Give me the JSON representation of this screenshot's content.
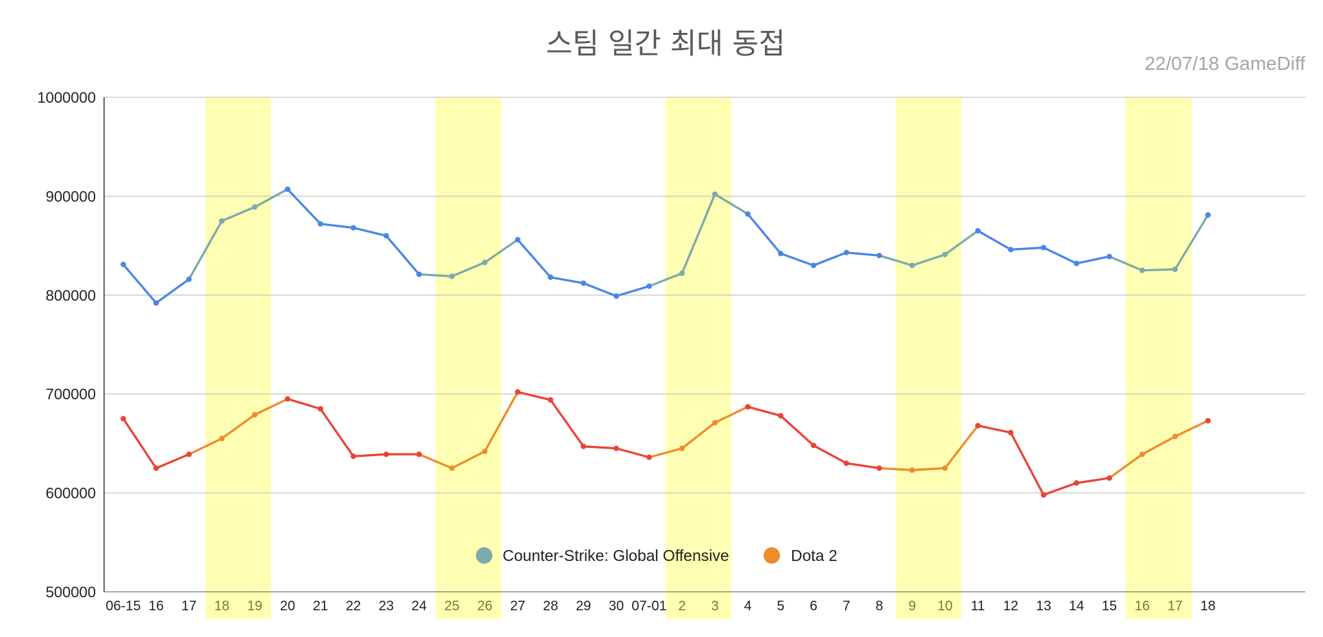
{
  "chart_data": {
    "type": "line",
    "title": "스팀 일간 최대 동접",
    "subtitle": "22/07/18  GameDiff",
    "xlabel": "",
    "ylabel": "",
    "ylim": [
      500000,
      1000000
    ],
    "yticks": [
      500000,
      600000,
      700000,
      800000,
      900000,
      1000000
    ],
    "grid": true,
    "legend_position": "bottom-center",
    "categories": [
      "06-15",
      "16",
      "17",
      "18",
      "19",
      "20",
      "21",
      "22",
      "23",
      "24",
      "25",
      "26",
      "27",
      "28",
      "29",
      "30",
      "07-01",
      "2",
      "3",
      "4",
      "5",
      "6",
      "7",
      "8",
      "9",
      "10",
      "11",
      "12",
      "13",
      "14",
      "15",
      "16",
      "17",
      "18"
    ],
    "weekend_indices": [
      3,
      4,
      10,
      11,
      17,
      18,
      24,
      25,
      31,
      32
    ],
    "weekend_color": "#ffffb3",
    "series": [
      {
        "name": "Counter-Strike: Global Offensive",
        "color": "#4a86e8",
        "weekend_color": "#7baaab",
        "legend_color": "#7baaab",
        "values": [
          831000,
          792000,
          816000,
          875000,
          889000,
          907000,
          872000,
          868000,
          860000,
          821000,
          819000,
          833000,
          856000,
          818000,
          812000,
          799000,
          809000,
          822000,
          902000,
          882000,
          842000,
          830000,
          843000,
          840000,
          830000,
          841000,
          865000,
          846000,
          848000,
          832000,
          839000,
          825000,
          826000,
          881000
        ]
      },
      {
        "name": "Dota 2",
        "color": "#ea4335",
        "weekend_color": "#ef8b2c",
        "legend_color": "#ef8b2c",
        "values": [
          675000,
          625000,
          639000,
          655000,
          679000,
          695000,
          685000,
          637000,
          639000,
          639000,
          625000,
          642000,
          702000,
          694000,
          647000,
          645000,
          636000,
          645000,
          671000,
          687000,
          678000,
          648000,
          630000,
          625000,
          623000,
          625000,
          668000,
          661000,
          598000,
          610000,
          615000,
          639000,
          657000,
          673000
        ]
      }
    ]
  }
}
